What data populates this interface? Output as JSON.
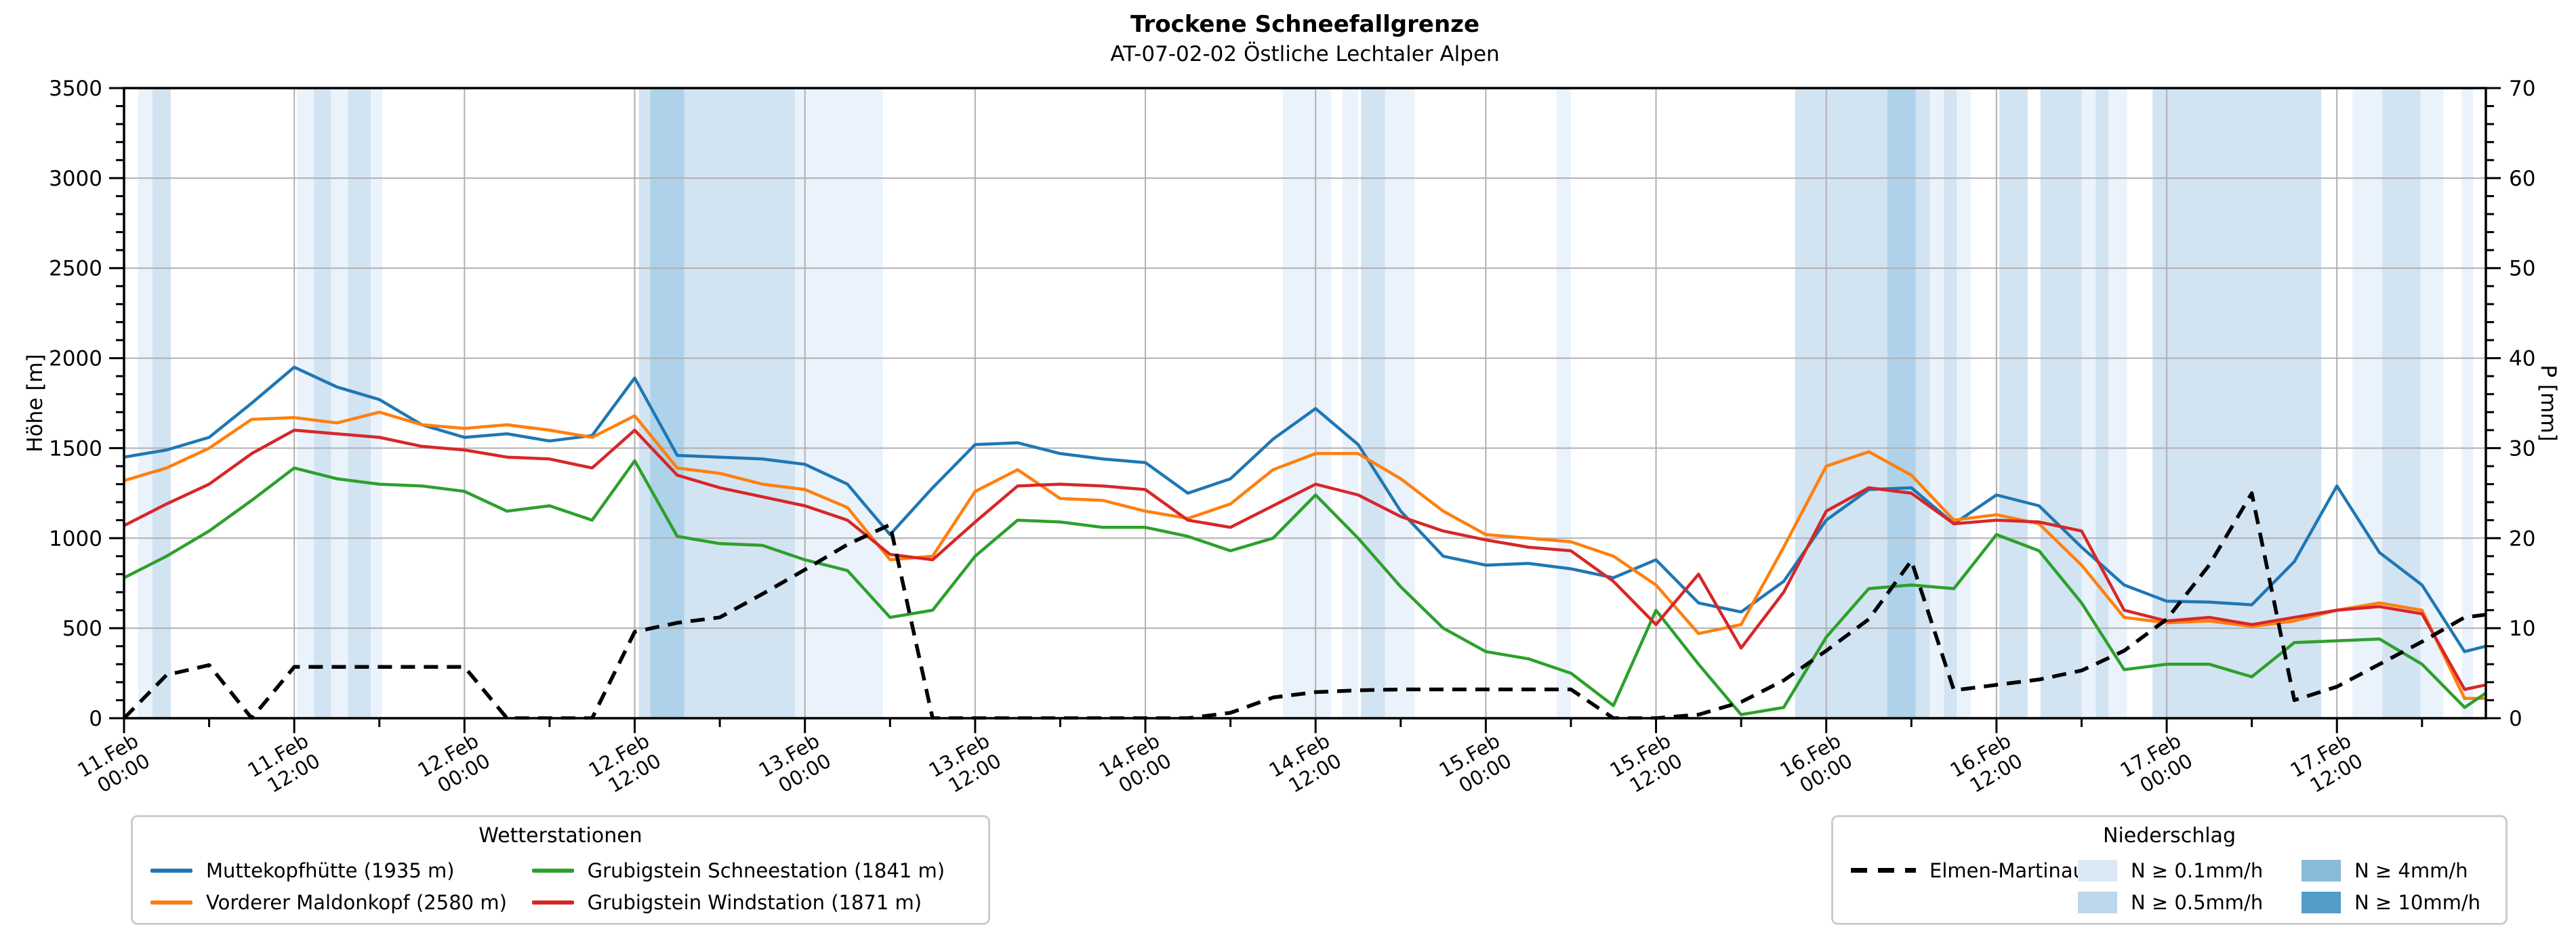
{
  "title": "Trockene Schneefallgrenze",
  "subtitle": "AT-07-02-02 Östliche Lechtaler Alpen",
  "axes": {
    "x": {
      "epoch": "11.Feb 00:00",
      "range_hours": [
        0,
        166.5
      ],
      "major_tick_every_h": 12,
      "minor_tick_every_h": 6,
      "tick_labels": [
        {
          "h": 0,
          "date": "11.Feb",
          "time": "00:00"
        },
        {
          "h": 12,
          "date": "11.Feb",
          "time": "12:00"
        },
        {
          "h": 24,
          "date": "12.Feb",
          "time": "00:00"
        },
        {
          "h": 36,
          "date": "12.Feb",
          "time": "12:00"
        },
        {
          "h": 48,
          "date": "13.Feb",
          "time": "00:00"
        },
        {
          "h": 60,
          "date": "13.Feb",
          "time": "12:00"
        },
        {
          "h": 72,
          "date": "14.Feb",
          "time": "00:00"
        },
        {
          "h": 84,
          "date": "14.Feb",
          "time": "12:00"
        },
        {
          "h": 96,
          "date": "15.Feb",
          "time": "00:00"
        },
        {
          "h": 108,
          "date": "15.Feb",
          "time": "12:00"
        },
        {
          "h": 120,
          "date": "16.Feb",
          "time": "00:00"
        },
        {
          "h": 132,
          "date": "16.Feb",
          "time": "12:00"
        },
        {
          "h": 144,
          "date": "17.Feb",
          "time": "00:00"
        },
        {
          "h": 156,
          "date": "17.Feb",
          "time": "12:00"
        }
      ]
    },
    "y_left": {
      "label": "Höhe [m]",
      "min": 0,
      "max": 3500,
      "major_step": 500,
      "minor_step": 100,
      "tick_values": [
        0,
        500,
        1000,
        1500,
        2000,
        2500,
        3000,
        3500
      ]
    },
    "y_right": {
      "label": "P [mm]",
      "min": 0,
      "max": 70,
      "major_step": 10,
      "minor_step": 2,
      "tick_values": [
        0,
        10,
        20,
        30,
        40,
        50,
        60,
        70
      ]
    }
  },
  "legends": {
    "stations": {
      "title": "Wetterstationen",
      "items": [
        {
          "label": "Muttekopfhütte (1935 m)",
          "color": "#1f77b4",
          "col": 0
        },
        {
          "label": "Vorderer Maldonkopf (2580 m)",
          "color": "#ff7f0e",
          "col": 0
        },
        {
          "label": "Grubigstein Schneestation (1841 m)",
          "color": "#2ca02c",
          "col": 1
        },
        {
          "label": "Grubigstein Windstation (1871 m)",
          "color": "#d62728",
          "col": 1
        }
      ]
    },
    "precip": {
      "title": "Niederschlag",
      "line_item": {
        "label": "Elmen-Martinau",
        "color": "#000000",
        "style": "dashed"
      },
      "patch_items": [
        {
          "label": "N ≥ 0.1mm/h",
          "color": "#dbe9f6",
          "col": 1
        },
        {
          "label": "N ≥ 0.5mm/h",
          "color": "#bdd7ec",
          "col": 1
        },
        {
          "label": "N ≥ 4mm/h",
          "color": "#8abada",
          "col": 2
        },
        {
          "label": "N ≥ 10mm/h",
          "color": "#539dcb",
          "col": 2
        }
      ]
    }
  },
  "chart_data": {
    "type": "line",
    "title": "Trockene Schneefallgrenze",
    "x_unit": "hours since 11.Feb 00:00",
    "grid": true,
    "x_hours": [
      0,
      3,
      6,
      9,
      12,
      15,
      18,
      21,
      24,
      27,
      30,
      33,
      36,
      39,
      42,
      45,
      48,
      51,
      54,
      57,
      60,
      63,
      66,
      69,
      72,
      75,
      78,
      81,
      84,
      87,
      90,
      93,
      96,
      99,
      102,
      105,
      108,
      111,
      114,
      117,
      120,
      123,
      126,
      129,
      132,
      135,
      138,
      141,
      144,
      147,
      150,
      153,
      156,
      159,
      162,
      165,
      166.5
    ],
    "series": [
      {
        "name": "Muttekopfhütte (1935 m)",
        "color": "#1f77b4",
        "axis": "left",
        "unit": "m",
        "style": "solid",
        "values": [
          1450,
          1490,
          1560,
          1750,
          1950,
          1840,
          1770,
          1630,
          1560,
          1580,
          1540,
          1570,
          1890,
          1460,
          1450,
          1440,
          1410,
          1300,
          1020,
          1280,
          1520,
          1530,
          1470,
          1440,
          1420,
          1250,
          1330,
          1550,
          1720,
          1520,
          1150,
          900,
          850,
          860,
          830,
          780,
          880,
          640,
          590,
          760,
          1100,
          1270,
          1280,
          1080,
          1240,
          1180,
          950,
          740,
          650,
          645,
          630,
          870,
          1290,
          920,
          740,
          370,
          400
        ]
      },
      {
        "name": "Vorderer Maldonkopf (2580 m)",
        "color": "#ff7f0e",
        "axis": "left",
        "unit": "m",
        "style": "solid",
        "values": [
          1320,
          1390,
          1500,
          1660,
          1670,
          1640,
          1700,
          1630,
          1610,
          1630,
          1600,
          1560,
          1680,
          1390,
          1360,
          1300,
          1270,
          1170,
          880,
          900,
          1260,
          1380,
          1220,
          1210,
          1150,
          1110,
          1190,
          1380,
          1470,
          1470,
          1330,
          1150,
          1020,
          1000,
          980,
          900,
          740,
          470,
          520,
          950,
          1400,
          1480,
          1350,
          1100,
          1130,
          1080,
          850,
          560,
          530,
          540,
          510,
          540,
          600,
          640,
          600,
          110,
          110
        ]
      },
      {
        "name": "Grubigstein Schneestation (1841 m)",
        "color": "#2ca02c",
        "axis": "left",
        "unit": "m",
        "style": "solid",
        "values": [
          780,
          900,
          1040,
          1210,
          1390,
          1330,
          1300,
          1290,
          1260,
          1150,
          1180,
          1100,
          1430,
          1010,
          970,
          960,
          880,
          820,
          560,
          600,
          900,
          1100,
          1090,
          1060,
          1060,
          1010,
          930,
          1000,
          1240,
          1000,
          730,
          500,
          370,
          330,
          250,
          70,
          600,
          300,
          20,
          60,
          450,
          720,
          740,
          720,
          1020,
          930,
          640,
          270,
          300,
          300,
          230,
          420,
          430,
          440,
          300,
          60,
          140
        ]
      },
      {
        "name": "Grubigstein Windstation (1871 m)",
        "color": "#d62728",
        "axis": "left",
        "unit": "m",
        "style": "solid",
        "values": [
          1070,
          1190,
          1300,
          1470,
          1600,
          1580,
          1560,
          1510,
          1490,
          1450,
          1440,
          1390,
          1600,
          1350,
          1280,
          1230,
          1180,
          1100,
          910,
          880,
          1090,
          1290,
          1300,
          1290,
          1270,
          1100,
          1060,
          1180,
          1300,
          1240,
          1120,
          1040,
          990,
          950,
          930,
          760,
          520,
          800,
          390,
          700,
          1150,
          1280,
          1250,
          1080,
          1100,
          1090,
          1040,
          600,
          540,
          560,
          520,
          560,
          600,
          620,
          580,
          160,
          185
        ]
      },
      {
        "name": "Elmen-Martinau",
        "color": "#000000",
        "axis": "right",
        "unit": "mm",
        "style": "dashed",
        "values": [
          0,
          4.8,
          5.9,
          0,
          5.7,
          5.7,
          5.7,
          5.7,
          5.7,
          0,
          0,
          0,
          9.6,
          10.6,
          11.2,
          13.8,
          16.5,
          19.3,
          21.5,
          0,
          0,
          0,
          0,
          0,
          0,
          0,
          0.6,
          2.3,
          2.9,
          3.1,
          3.2,
          3.2,
          3.2,
          3.2,
          3.2,
          0,
          0,
          0.4,
          1.8,
          4.2,
          7.5,
          11,
          17.5,
          3.1,
          3.7,
          4.3,
          5.3,
          7.5,
          11,
          17,
          25,
          2,
          3.5,
          6,
          8.5,
          11.2,
          11.5
        ]
      }
    ],
    "precip_bands": [
      {
        "start_h": 1.0,
        "end_h": 2.0,
        "level": "0.1"
      },
      {
        "start_h": 2.0,
        "end_h": 3.3,
        "level": "0.5"
      },
      {
        "start_h": 12.2,
        "end_h": 13.4,
        "level": "0.1"
      },
      {
        "start_h": 13.4,
        "end_h": 14.6,
        "level": "0.5"
      },
      {
        "start_h": 14.6,
        "end_h": 15.8,
        "level": "0.1"
      },
      {
        "start_h": 15.8,
        "end_h": 17.4,
        "level": "0.5"
      },
      {
        "start_h": 17.4,
        "end_h": 18.2,
        "level": "0.1"
      },
      {
        "start_h": 36.3,
        "end_h": 37.1,
        "level": "0.5"
      },
      {
        "start_h": 37.1,
        "end_h": 39.5,
        "level": "4"
      },
      {
        "start_h": 39.5,
        "end_h": 47.3,
        "level": "0.5"
      },
      {
        "start_h": 47.3,
        "end_h": 53.5,
        "level": "0.1"
      },
      {
        "start_h": 81.7,
        "end_h": 85.1,
        "level": "0.1"
      },
      {
        "start_h": 85.9,
        "end_h": 87.0,
        "level": "0.1"
      },
      {
        "start_h": 87.2,
        "end_h": 88.9,
        "level": "0.5"
      },
      {
        "start_h": 88.9,
        "end_h": 91.0,
        "level": "0.1"
      },
      {
        "start_h": 101.0,
        "end_h": 102.0,
        "level": "0.1"
      },
      {
        "start_h": 117.8,
        "end_h": 124.3,
        "level": "0.5"
      },
      {
        "start_h": 124.3,
        "end_h": 126.3,
        "level": "4"
      },
      {
        "start_h": 126.3,
        "end_h": 127.3,
        "level": "0.5"
      },
      {
        "start_h": 127.3,
        "end_h": 128.3,
        "level": "0.1"
      },
      {
        "start_h": 128.3,
        "end_h": 129.2,
        "level": "0.5"
      },
      {
        "start_h": 129.2,
        "end_h": 130.2,
        "level": "0.1"
      },
      {
        "start_h": 132.2,
        "end_h": 134.2,
        "level": "0.5"
      },
      {
        "start_h": 135.1,
        "end_h": 138.0,
        "level": "0.5"
      },
      {
        "start_h": 138.0,
        "end_h": 139.0,
        "level": "0.1"
      },
      {
        "start_h": 139.0,
        "end_h": 139.9,
        "level": "0.5"
      },
      {
        "start_h": 139.9,
        "end_h": 141.2,
        "level": "0.1"
      },
      {
        "start_h": 143.0,
        "end_h": 154.9,
        "level": "0.5"
      },
      {
        "start_h": 157.1,
        "end_h": 159.2,
        "level": "0.1"
      },
      {
        "start_h": 159.2,
        "end_h": 161.9,
        "level": "0.5"
      },
      {
        "start_h": 161.9,
        "end_h": 163.5,
        "level": "0.1"
      },
      {
        "start_h": 164.8,
        "end_h": 165.6,
        "level": "0.1"
      }
    ],
    "band_fill_colors": {
      "0.1": "#eaf2fb",
      "0.5": "#d2e3f2",
      "4": "#aed2e9",
      "10": "#82b4d8"
    }
  }
}
